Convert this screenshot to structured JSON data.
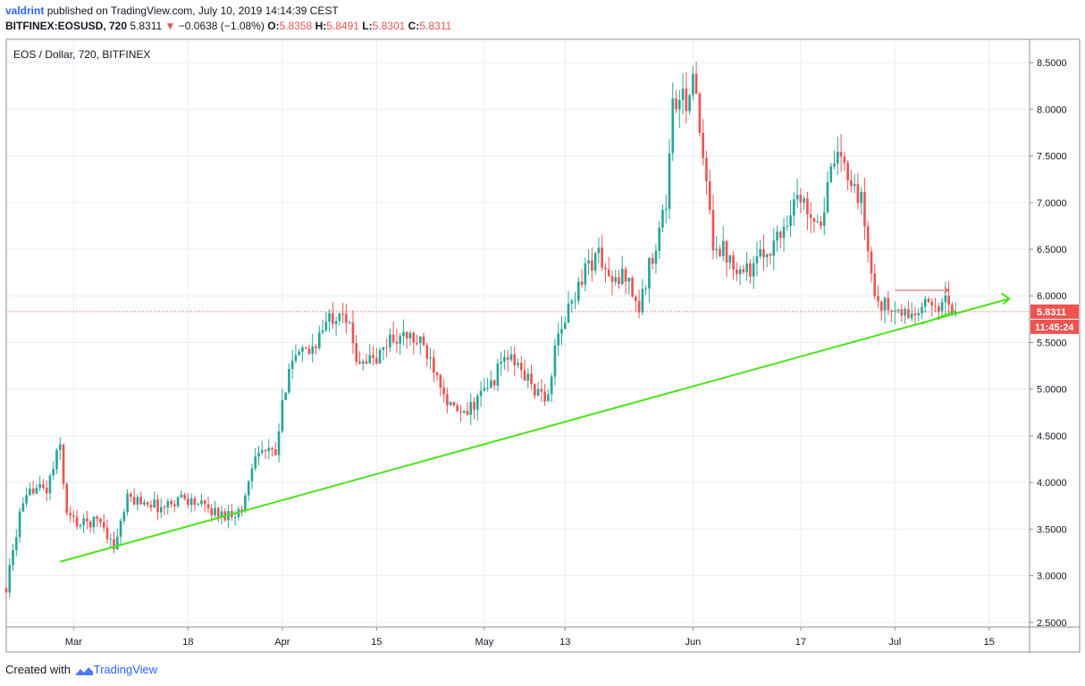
{
  "header": {
    "user": "valdrint",
    "published": "published on TradingView.com, July 10, 2019 14:14:39 CEST",
    "symbol": "BITFINEX:EOSUSD, 720",
    "last": "5.8311",
    "change": "−0.0638 (−1.08%)",
    "o_label": "O:",
    "o": "5.8358",
    "h_label": "H:",
    "h": "5.8491",
    "l_label": "L:",
    "l": "5.8301",
    "c_label": "C:",
    "c": "5.8311"
  },
  "footer": {
    "created": "Created with",
    "brand": "TradingView"
  },
  "colors": {
    "up": "#26a69a",
    "down": "#ef5350",
    "trend": "#4be31c",
    "price_line": "#ef5350",
    "grid": "#e6eef7"
  },
  "chart_data": {
    "type": "candlestick",
    "title": "EOS / Dollar, 720, BITFINEX",
    "ylim": [
      2.45,
      8.75
    ],
    "xlim": [
      "2019-02-19",
      "2019-07-21"
    ],
    "y_ticks": [
      "2.5000",
      "3.0000",
      "3.5000",
      "4.0000",
      "4.5000",
      "5.0000",
      "5.5000",
      "6.0000",
      "6.5000",
      "7.0000",
      "7.5000",
      "8.0000",
      "8.5000"
    ],
    "x_ticks": [
      {
        "label": "Mar",
        "date": "2019-03-01"
      },
      {
        "label": "18",
        "date": "2019-03-18"
      },
      {
        "label": "Apr",
        "date": "2019-04-01"
      },
      {
        "label": "15",
        "date": "2019-04-15"
      },
      {
        "label": "May",
        "date": "2019-05-01"
      },
      {
        "label": "13",
        "date": "2019-05-13"
      },
      {
        "label": "Jun",
        "date": "2019-06-01"
      },
      {
        "label": "17",
        "date": "2019-06-17"
      },
      {
        "label": "Jul",
        "date": "2019-07-01"
      },
      {
        "label": "15",
        "date": "2019-07-15"
      }
    ],
    "last_price": 5.8311,
    "last_price_label": "5.8311",
    "countdown_label": "11:45:24",
    "grid": true,
    "close_path": [
      [
        "2019-02-19",
        2.87
      ],
      [
        "2019-02-21",
        3.65
      ],
      [
        "2019-02-23",
        3.95
      ],
      [
        "2019-02-25",
        3.92
      ],
      [
        "2019-02-27",
        4.4
      ],
      [
        "2019-02-28",
        3.65
      ],
      [
        "2019-03-02",
        3.55
      ],
      [
        "2019-03-05",
        3.6
      ],
      [
        "2019-03-07",
        3.3
      ],
      [
        "2019-03-09",
        3.82
      ],
      [
        "2019-03-12",
        3.8
      ],
      [
        "2019-03-14",
        3.72
      ],
      [
        "2019-03-17",
        3.85
      ],
      [
        "2019-03-20",
        3.75
      ],
      [
        "2019-03-23",
        3.65
      ],
      [
        "2019-03-26",
        3.7
      ],
      [
        "2019-03-28",
        4.35
      ],
      [
        "2019-03-31",
        4.3
      ],
      [
        "2019-04-02",
        5.3
      ],
      [
        "2019-04-05",
        5.4
      ],
      [
        "2019-04-08",
        5.75
      ],
      [
        "2019-04-10",
        5.9
      ],
      [
        "2019-04-12",
        5.35
      ],
      [
        "2019-04-15",
        5.3
      ],
      [
        "2019-04-17",
        5.55
      ],
      [
        "2019-04-20",
        5.55
      ],
      [
        "2019-04-22",
        5.45
      ],
      [
        "2019-04-24",
        5.2
      ],
      [
        "2019-04-26",
        4.8
      ],
      [
        "2019-04-28",
        4.7
      ],
      [
        "2019-04-30",
        4.9
      ],
      [
        "2019-05-02",
        5.05
      ],
      [
        "2019-05-04",
        5.35
      ],
      [
        "2019-05-06",
        5.25
      ],
      [
        "2019-05-08",
        5.05
      ],
      [
        "2019-05-10",
        4.85
      ],
      [
        "2019-05-12",
        5.55
      ],
      [
        "2019-05-14",
        5.95
      ],
      [
        "2019-05-16",
        6.3
      ],
      [
        "2019-05-18",
        6.45
      ],
      [
        "2019-05-20",
        6.1
      ],
      [
        "2019-05-22",
        6.25
      ],
      [
        "2019-05-24",
        5.85
      ],
      [
        "2019-05-26",
        6.45
      ],
      [
        "2019-05-28",
        7.0
      ],
      [
        "2019-05-29",
        8.05
      ],
      [
        "2019-05-31",
        8.1
      ],
      [
        "2019-06-01",
        8.4
      ],
      [
        "2019-06-02",
        7.7
      ],
      [
        "2019-06-04",
        6.6
      ],
      [
        "2019-06-06",
        6.45
      ],
      [
        "2019-06-08",
        6.3
      ],
      [
        "2019-06-10",
        6.3
      ],
      [
        "2019-06-12",
        6.5
      ],
      [
        "2019-06-14",
        6.65
      ],
      [
        "2019-06-16",
        7.05
      ],
      [
        "2019-06-18",
        6.95
      ],
      [
        "2019-06-20",
        6.8
      ],
      [
        "2019-06-22",
        7.45
      ],
      [
        "2019-06-24",
        7.35
      ],
      [
        "2019-06-26",
        7.0
      ],
      [
        "2019-06-27",
        6.5
      ],
      [
        "2019-06-28",
        6.0
      ],
      [
        "2019-06-30",
        5.85
      ],
      [
        "2019-07-02",
        5.8
      ],
      [
        "2019-07-04",
        5.8
      ],
      [
        "2019-07-06",
        5.9
      ],
      [
        "2019-07-08",
        5.95
      ],
      [
        "2019-07-10",
        5.83
      ]
    ],
    "trend_line": {
      "from": [
        "2019-02-27",
        3.15
      ],
      "to": [
        "2019-07-18",
        5.97
      ]
    },
    "resistance_line": {
      "from": [
        "2019-07-01",
        6.06
      ],
      "to": [
        "2019-07-09",
        6.06
      ]
    },
    "support_line": {
      "from": [
        "2019-07-05",
        5.7
      ],
      "to": [
        "2019-07-10",
        5.84
      ]
    }
  }
}
